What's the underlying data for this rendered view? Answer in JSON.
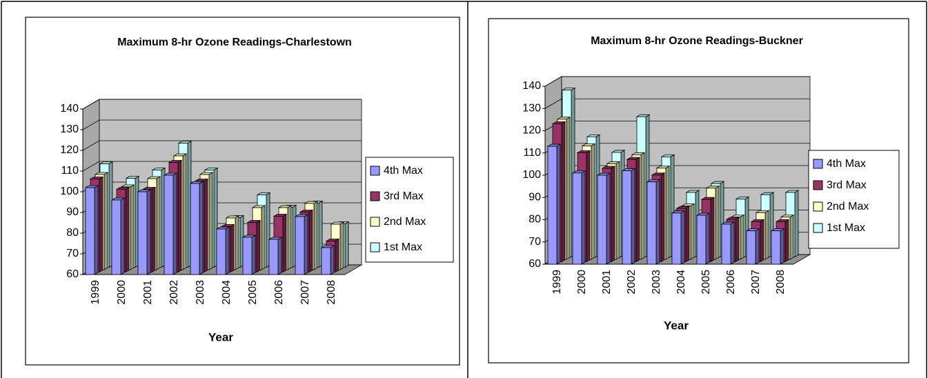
{
  "chart_data": [
    {
      "type": "bar3d",
      "title": "Maximum 8-hr Ozone Readings-Charlestown",
      "x_label": "Year",
      "categories": [
        "1999",
        "2000",
        "2001",
        "2002",
        "2003",
        "2004",
        "2005",
        "2006",
        "2007",
        "2008"
      ],
      "series": [
        {
          "name": "4th Max",
          "color": "#9999ff",
          "values": [
            102,
            96,
            100,
            108,
            104,
            82,
            78,
            77,
            88,
            73
          ]
        },
        {
          "name": "3rd Max",
          "color": "#993366",
          "values": [
            105,
            100,
            100,
            113,
            104,
            82,
            84,
            87,
            89,
            75
          ]
        },
        {
          "name": "2nd Max",
          "color": "#ffffcc",
          "values": [
            106,
            100,
            104,
            115,
            106,
            85,
            90,
            90,
            92,
            82
          ]
        },
        {
          "name": "1st Max",
          "color": "#ccffff",
          "values": [
            110,
            103,
            107,
            120,
            107,
            84,
            95,
            89,
            91,
            81
          ]
        }
      ],
      "ylim": [
        60,
        140
      ],
      "yticks": [
        60,
        70,
        80,
        90,
        100,
        110,
        120,
        130,
        140
      ],
      "grid": true,
      "legend": "right"
    },
    {
      "type": "bar3d",
      "title": "Maximum 8-hr Ozone Readings-Buckner",
      "x_label": "Year",
      "categories": [
        "1999",
        "2000",
        "2001",
        "2002",
        "2003",
        "2004",
        "2005",
        "2006",
        "2007",
        "2008"
      ],
      "series": [
        {
          "name": "4th Max",
          "color": "#9999ff",
          "values": [
            113,
            101,
            100,
            102,
            97,
            83,
            82,
            78,
            75,
            75
          ]
        },
        {
          "name": "3rd Max",
          "color": "#993366",
          "values": [
            122,
            109,
            102,
            106,
            99,
            84,
            88,
            79,
            78,
            78
          ]
        },
        {
          "name": "2nd Max",
          "color": "#ffffcc",
          "values": [
            123,
            111,
            103,
            107,
            101,
            84,
            92,
            79,
            81,
            79
          ]
        },
        {
          "name": "1st Max",
          "color": "#ccffff",
          "values": [
            135,
            114,
            107,
            123,
            105,
            89,
            93,
            86,
            88,
            89
          ]
        }
      ],
      "ylim": [
        60,
        140
      ],
      "yticks": [
        60,
        70,
        80,
        90,
        100,
        110,
        120,
        130,
        140
      ],
      "grid": true,
      "legend": "right"
    }
  ]
}
